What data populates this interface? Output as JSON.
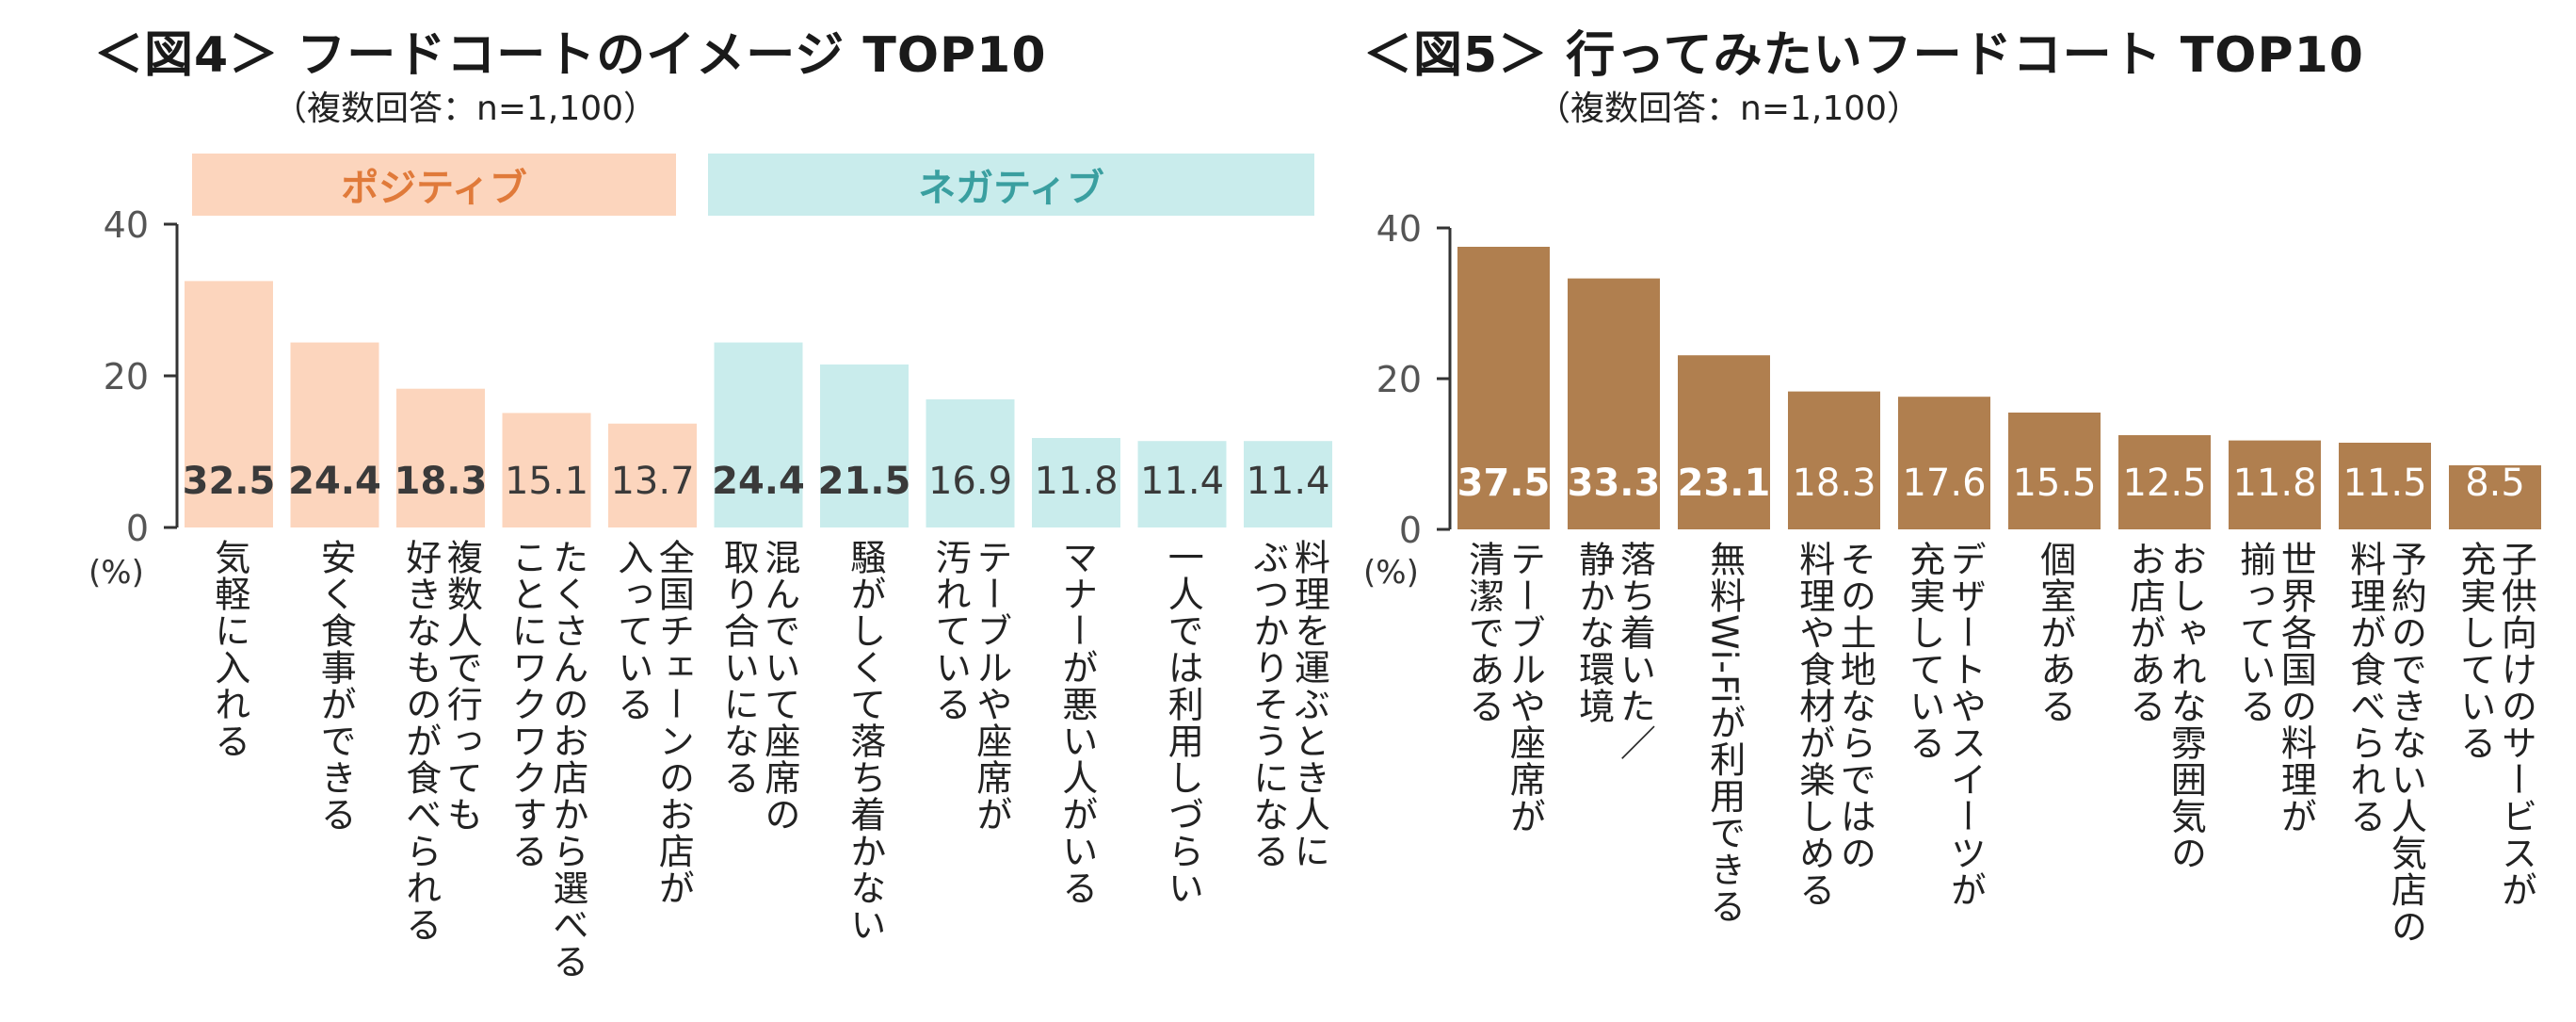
{
  "fig4": {
    "title": "＜図4＞ フードコートのイメージ TOP10",
    "subtitle": "（複数回答：n=1,100）",
    "unit_label": "(%)",
    "groups": [
      {
        "label": "ポジティブ",
        "color": "#e07a3a",
        "bg": "#fcd5bd"
      },
      {
        "label": "ネガティブ",
        "color": "#3a9fa0",
        "bg": "#c9ecec"
      }
    ],
    "chart_data": {
      "type": "bar",
      "title": "＜図4＞ フードコートのイメージ TOP10",
      "ylabel": "(%)",
      "ylim": [
        0,
        40
      ],
      "yticks": [
        0,
        20,
        40
      ],
      "categories": [
        [
          "気軽に入れる"
        ],
        [
          "安く食事ができる"
        ],
        [
          "複数人で行っても",
          "好きなものが食べられる"
        ],
        [
          "たくさんのお店から選べる",
          "ことにワクワクする"
        ],
        [
          "全国チェーンのお店が",
          "入っている"
        ],
        [
          "混んでいて座席の",
          "取り合いになる"
        ],
        [
          "騒がしくて落ち着かない"
        ],
        [
          "テーブルや座席が",
          "汚れている"
        ],
        [
          "マナーが悪い人がいる"
        ],
        [
          "一人では利用しづらい"
        ],
        [
          "料理を運ぶとき人に",
          "ぶつかりそうになる"
        ]
      ],
      "values": [
        32.5,
        24.4,
        18.3,
        15.1,
        13.7,
        24.4,
        21.5,
        16.9,
        11.8,
        11.4,
        11.4
      ],
      "value_labels": [
        "32.5",
        "24.4",
        "18.3",
        "15.1",
        "13.7",
        "24.4",
        "21.5",
        "16.9",
        "11.8",
        "11.4",
        "11.4"
      ],
      "bold": [
        true,
        true,
        true,
        false,
        false,
        true,
        true,
        false,
        false,
        false,
        false
      ],
      "colors": [
        "#fcd5bd",
        "#fcd5bd",
        "#fcd5bd",
        "#fcd5bd",
        "#fcd5bd",
        "#c9ecec",
        "#c9ecec",
        "#c9ecec",
        "#c9ecec",
        "#c9ecec",
        "#c9ecec"
      ],
      "grid": false
    }
  },
  "fig5": {
    "title": "＜図5＞ 行ってみたいフードコート TOP10",
    "subtitle": "（複数回答：n=1,100）",
    "unit_label": "(%)",
    "chart_data": {
      "type": "bar",
      "title": "＜図5＞ 行ってみたいフードコート TOP10",
      "ylabel": "(%)",
      "ylim": [
        0,
        40
      ],
      "yticks": [
        0,
        20,
        40
      ],
      "categories": [
        [
          "テーブルや座席が",
          "清潔である"
        ],
        [
          "落ち着いた／",
          "静かな環境"
        ],
        [
          "無料Wi-Fiが利用できる"
        ],
        [
          "その土地ならではの",
          "料理や食材が楽しめる"
        ],
        [
          "デザートやスイーツが",
          "充実している"
        ],
        [
          "個室がある"
        ],
        [
          "おしゃれな雰囲気の",
          "お店がある"
        ],
        [
          "世界各国の料理が",
          "揃っている"
        ],
        [
          "予約のできない人気店の",
          "料理が食べられる"
        ],
        [
          "子供向けのサービスが",
          "充実している"
        ]
      ],
      "values": [
        37.5,
        33.3,
        23.1,
        18.3,
        17.6,
        15.5,
        12.5,
        11.8,
        11.5,
        8.5
      ],
      "value_labels": [
        "37.5",
        "33.3",
        "23.1",
        "18.3",
        "17.6",
        "15.5",
        "12.5",
        "11.8",
        "11.5",
        "8.5"
      ],
      "bold": [
        true,
        true,
        true,
        false,
        false,
        false,
        false,
        false,
        false,
        false
      ],
      "color": "#b07f4f",
      "grid": false
    }
  }
}
